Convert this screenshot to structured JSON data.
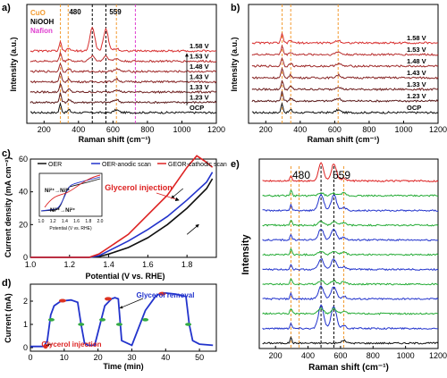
{
  "chart_data": [
    {
      "panel": "a)",
      "type": "line",
      "xlabel": "Raman shift (cm⁻¹)",
      "ylabel": "Intensity (a.u.)",
      "xlim": [
        100,
        1200
      ],
      "xticks": [
        200,
        400,
        600,
        800,
        1000,
        1200
      ],
      "legend": [
        {
          "label": "CuO",
          "color": "#f29a2e"
        },
        {
          "label": "NiOOH",
          "color": "#000000"
        },
        {
          "label": "Nafion",
          "color": "#e040d0"
        }
      ],
      "reference_lines": [
        {
          "x": 295,
          "color": "#f29a2e"
        },
        {
          "x": 340,
          "color": "#f29a2e"
        },
        {
          "x": 620,
          "color": "#f29a2e"
        },
        {
          "x": 480,
          "color": "#000000"
        },
        {
          "x": 559,
          "color": "#000000"
        },
        {
          "x": 730,
          "color": "#e040d0"
        }
      ],
      "peak_labels": [
        "480",
        "559"
      ],
      "series": [
        {
          "name": "OCP",
          "color": "#111111"
        },
        {
          "name": "1.23 V",
          "color": "#5a1a1a"
        },
        {
          "name": "1.33 V",
          "color": "#6e1f1f"
        },
        {
          "name": "1.43 V",
          "color": "#862424"
        },
        {
          "name": "1.48 V",
          "color": "#9e2828"
        },
        {
          "name": "1.53 V",
          "color": "#b82c2c"
        },
        {
          "name": "1.58 V",
          "color": "#d83030"
        }
      ]
    },
    {
      "panel": "b)",
      "type": "line",
      "xlabel": "Raman shift (cm⁻¹)",
      "ylabel": "Intensity (a.u.)",
      "xlim": [
        100,
        1200
      ],
      "xticks": [
        200,
        400,
        600,
        800,
        1000,
        1200
      ],
      "reference_lines": [
        {
          "x": 295,
          "color": "#f29a2e"
        },
        {
          "x": 345,
          "color": "#f29a2e"
        },
        {
          "x": 620,
          "color": "#f29a2e"
        }
      ],
      "series": [
        {
          "name": "OCP",
          "color": "#111111"
        },
        {
          "name": "1.23 V",
          "color": "#5a1a1a"
        },
        {
          "name": "1.33 V",
          "color": "#6e1f1f"
        },
        {
          "name": "1.43 V",
          "color": "#862424"
        },
        {
          "name": "1.48 V",
          "color": "#9e2828"
        },
        {
          "name": "1.53 V",
          "color": "#b82c2c"
        },
        {
          "name": "1.58 V",
          "color": "#d83030"
        }
      ]
    },
    {
      "panel": "c)",
      "type": "line",
      "xlabel": "Potential (V vs. RHE)",
      "ylabel": "Current density (mA cm⁻²)",
      "xlim": [
        1.0,
        1.95
      ],
      "ylim": [
        0,
        60
      ],
      "xticks": [
        1.0,
        1.2,
        1.4,
        1.6,
        1.8
      ],
      "yticks": [
        0,
        20,
        40,
        60
      ],
      "legend": [
        {
          "label": "OER",
          "color": "#111111"
        },
        {
          "label": "OER-anodic scan",
          "color": "#2233cc"
        },
        {
          "label": "GEOR-cathodic scan",
          "color": "#dd2222"
        }
      ],
      "annotations": [
        "Glycerol injection"
      ],
      "inset": {
        "xlabel": "Potential (V vs. RHE)",
        "xticks": [
          1.0,
          1.2,
          1.4,
          1.6,
          1.8,
          2.0
        ],
        "annotations": [
          "Ni²⁺→Ni³⁺",
          "Ni³⁺→Ni²⁺"
        ]
      },
      "series": [
        {
          "name": "OER",
          "x": [
            1.0,
            1.3,
            1.35,
            1.4,
            1.5,
            1.6,
            1.7,
            1.8,
            1.9,
            1.93
          ],
          "y": [
            0,
            0,
            0.5,
            2,
            6,
            12,
            20,
            30,
            42,
            48
          ]
        },
        {
          "name": "OER-anodic scan",
          "x": [
            1.0,
            1.3,
            1.35,
            1.4,
            1.5,
            1.6,
            1.7,
            1.8,
            1.9,
            1.93
          ],
          "y": [
            0,
            0,
            1,
            4,
            10,
            17,
            25,
            35,
            46,
            52
          ]
        },
        {
          "name": "GEOR-cathodic scan",
          "x": [
            1.93,
            1.9,
            1.85,
            1.8,
            1.7,
            1.6,
            1.5,
            1.4,
            1.35,
            1.3,
            1.0
          ],
          "y": [
            55,
            58,
            62,
            55,
            38,
            26,
            14,
            6,
            2,
            0,
            0
          ]
        }
      ]
    },
    {
      "panel": "d)",
      "type": "line",
      "xlabel": "Time (min)",
      "ylabel": "Current (mA)",
      "xlim": [
        0,
        55
      ],
      "ylim": [
        0,
        2.5
      ],
      "xticks": [
        0,
        10,
        20,
        30,
        40,
        50
      ],
      "yticks": [
        0,
        1,
        2
      ],
      "annotations": [
        "Glycerol injection",
        "Glycerol removal"
      ],
      "series": [
        {
          "name": "current",
          "color": "#2233cc",
          "x": [
            0,
            4,
            5,
            6,
            7,
            9,
            12,
            14,
            15,
            16,
            17,
            19,
            22,
            24,
            25,
            26,
            27,
            30,
            34,
            37,
            38,
            40,
            43,
            46,
            47,
            48,
            50,
            54
          ],
          "y": [
            0.05,
            0.05,
            0.3,
            1.4,
            1.8,
            2.0,
            2.05,
            1.95,
            1.0,
            0.2,
            0.1,
            0.1,
            1.8,
            2.1,
            2.15,
            2.1,
            0.3,
            0.1,
            1.6,
            2.2,
            2.3,
            2.35,
            2.3,
            2.2,
            1.0,
            0.3,
            0.15,
            0.1
          ]
        }
      ]
    },
    {
      "panel": "e)",
      "type": "line",
      "xlabel": "Raman shift (cm⁻¹)",
      "ylabel": "Intensity",
      "xlim": [
        100,
        1200
      ],
      "xticks": [
        200,
        400,
        600,
        800,
        1000,
        1200
      ],
      "peak_labels": [
        "480",
        "559"
      ],
      "reference_lines": [
        {
          "x": 295,
          "color": "#f29a2e"
        },
        {
          "x": 345,
          "color": "#f29a2e"
        },
        {
          "x": 480,
          "color": "#000000"
        },
        {
          "x": 559,
          "color": "#000000"
        },
        {
          "x": 620,
          "color": "#f29a2e"
        }
      ]
    }
  ]
}
